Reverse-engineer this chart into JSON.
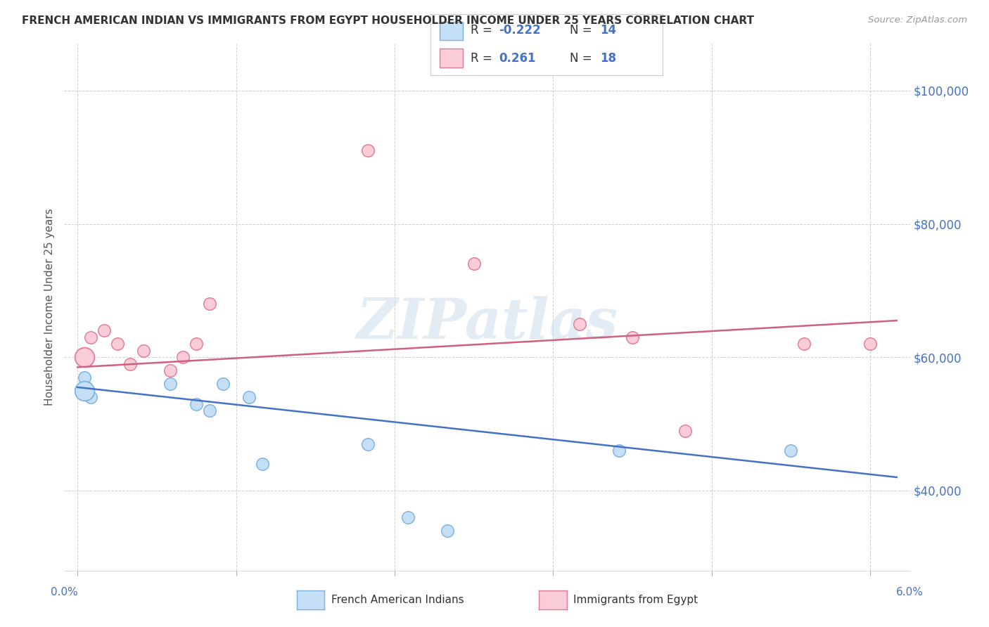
{
  "title": "FRENCH AMERICAN INDIAN VS IMMIGRANTS FROM EGYPT HOUSEHOLDER INCOME UNDER 25 YEARS CORRELATION CHART",
  "source": "Source: ZipAtlas.com",
  "ylabel": "Householder Income Under 25 years",
  "legend_label1": "French American Indians",
  "legend_label2": "Immigrants from Egypt",
  "ytick_labels": [
    "$40,000",
    "$60,000",
    "$80,000",
    "$100,000"
  ],
  "ytick_values": [
    40000,
    60000,
    80000,
    100000
  ],
  "ylim": [
    28000,
    107000
  ],
  "xlim": [
    -0.001,
    0.063
  ],
  "blue_scatter_x": [
    0.0005,
    0.001,
    0.007,
    0.009,
    0.01,
    0.011,
    0.013,
    0.014,
    0.022,
    0.025,
    0.028,
    0.041,
    0.054
  ],
  "blue_scatter_y": [
    57000,
    54000,
    56000,
    53000,
    52000,
    56000,
    54000,
    44000,
    47000,
    36000,
    34000,
    46000,
    46000
  ],
  "blue_scatter_large_x": [
    0.0005
  ],
  "blue_scatter_large_y": [
    54000
  ],
  "pink_scatter_x": [
    0.001,
    0.002,
    0.003,
    0.004,
    0.005,
    0.007,
    0.008,
    0.009,
    0.01,
    0.022,
    0.03,
    0.038,
    0.042,
    0.046,
    0.055,
    0.06
  ],
  "pink_scatter_y": [
    63000,
    64000,
    62000,
    59000,
    61000,
    58000,
    60000,
    62000,
    68000,
    91000,
    74000,
    65000,
    63000,
    49000,
    62000,
    62000
  ],
  "pink_scatter_large_x": [
    0.0005
  ],
  "pink_scatter_large_y": [
    60000
  ],
  "blue_line_x": [
    0.0,
    0.062
  ],
  "blue_line_y": [
    55500,
    42000
  ],
  "pink_line_x": [
    0.0,
    0.062
  ],
  "pink_line_y": [
    58500,
    65500
  ],
  "scatter_size": 160,
  "scatter_size_large": 400,
  "blue_face": "#c5dff7",
  "blue_edge": "#7ab0e0",
  "pink_face": "#f9ccd8",
  "pink_edge": "#e07898",
  "blue_line_color": "#4472C4",
  "pink_line_color": "#d06080",
  "watermark": "ZIPatlas",
  "grid_color": "#d0d0d0",
  "background_color": "#ffffff"
}
